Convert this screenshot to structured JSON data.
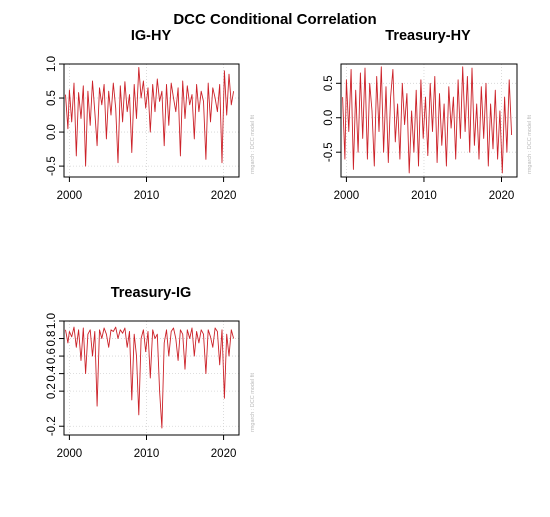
{
  "figure_title": "DCC Conditional Correlation",
  "chart_data": [
    {
      "type": "line",
      "title": "IG-HY",
      "side_label": "rmgarch : DCC model fit",
      "color": "#cc2229",
      "xlim": [
        1999.3,
        2022.0
      ],
      "ylim": [
        -0.66,
        1.0
      ],
      "xticks": [
        "2000",
        "2010",
        "2020"
      ],
      "yticks": [
        "-0.5",
        "0.0",
        "0.5",
        "1.0"
      ],
      "grid": true,
      "x": [
        1999.5,
        1999.8,
        2000.0,
        2000.3,
        2000.6,
        2000.9,
        2001.2,
        2001.5,
        2001.8,
        2002.1,
        2002.4,
        2002.7,
        2003.0,
        2003.3,
        2003.6,
        2003.9,
        2004.2,
        2004.5,
        2004.8,
        2005.1,
        2005.4,
        2005.7,
        2006.0,
        2006.3,
        2006.6,
        2006.9,
        2007.2,
        2007.5,
        2007.8,
        2008.1,
        2008.4,
        2008.7,
        2009.0,
        2009.3,
        2009.6,
        2009.9,
        2010.2,
        2010.5,
        2010.8,
        2011.1,
        2011.4,
        2011.7,
        2012.0,
        2012.3,
        2012.6,
        2012.9,
        2013.2,
        2013.5,
        2013.8,
        2014.1,
        2014.4,
        2014.7,
        2015.0,
        2015.3,
        2015.6,
        2015.9,
        2016.2,
        2016.5,
        2016.8,
        2017.1,
        2017.4,
        2017.7,
        2018.0,
        2018.3,
        2018.6,
        2018.9,
        2019.2,
        2019.5,
        2019.8,
        2020.1,
        2020.4,
        2020.7,
        2021.0,
        2021.3
      ],
      "y": [
        0.55,
        0.05,
        0.62,
        0.15,
        0.72,
        -0.35,
        0.58,
        0.2,
        0.68,
        -0.5,
        0.6,
        0.1,
        0.75,
        0.3,
        -0.2,
        0.65,
        0.4,
        0.7,
        -0.1,
        0.6,
        0.25,
        0.72,
        0.35,
        -0.45,
        0.68,
        0.15,
        0.74,
        0.3,
        0.55,
        -0.3,
        0.7,
        0.2,
        0.95,
        0.5,
        0.75,
        0.35,
        0.65,
        0.0,
        0.7,
        0.3,
        0.78,
        0.45,
        0.6,
        -0.2,
        0.7,
        0.1,
        0.72,
        0.5,
        0.3,
        0.65,
        -0.35,
        0.75,
        0.2,
        0.68,
        0.4,
        0.55,
        -0.1,
        0.7,
        0.3,
        0.6,
        0.45,
        -0.4,
        0.72,
        0.15,
        0.65,
        0.5,
        0.3,
        0.7,
        -0.45,
        0.9,
        0.25,
        0.85,
        0.4,
        0.6
      ]
    },
    {
      "type": "line",
      "title": "Treasury-HY",
      "side_label": "rmgarch : DCC model fit",
      "color": "#cc2229",
      "xlim": [
        1999.3,
        2022.0
      ],
      "ylim": [
        -0.86,
        0.78
      ],
      "xticks": [
        "2000",
        "2010",
        "2020"
      ],
      "yticks": [
        "-0.5",
        "0.0",
        "0.5"
      ],
      "grid": true,
      "x": [
        1999.5,
        1999.8,
        2000.0,
        2000.3,
        2000.6,
        2000.9,
        2001.2,
        2001.5,
        2001.8,
        2002.1,
        2002.4,
        2002.7,
        2003.0,
        2003.3,
        2003.6,
        2003.9,
        2004.2,
        2004.5,
        2004.8,
        2005.1,
        2005.4,
        2005.7,
        2006.0,
        2006.3,
        2006.6,
        2006.9,
        2007.2,
        2007.5,
        2007.8,
        2008.1,
        2008.4,
        2008.7,
        2009.0,
        2009.3,
        2009.6,
        2009.9,
        2010.2,
        2010.5,
        2010.8,
        2011.1,
        2011.4,
        2011.7,
        2012.0,
        2012.3,
        2012.6,
        2012.9,
        2013.2,
        2013.5,
        2013.8,
        2014.1,
        2014.4,
        2014.7,
        2015.0,
        2015.3,
        2015.6,
        2015.9,
        2016.2,
        2016.5,
        2016.8,
        2017.1,
        2017.4,
        2017.7,
        2018.0,
        2018.3,
        2018.6,
        2018.9,
        2019.2,
        2019.5,
        2019.8,
        2020.1,
        2020.4,
        2020.7,
        2021.0,
        2021.3
      ],
      "y": [
        0.3,
        -0.6,
        0.55,
        -0.2,
        0.7,
        -0.75,
        0.4,
        -0.5,
        0.65,
        -0.3,
        0.72,
        -0.6,
        0.5,
        0.1,
        -0.7,
        0.6,
        -0.2,
        0.74,
        -0.5,
        0.45,
        -0.65,
        0.3,
        0.7,
        -0.35,
        0.2,
        -0.6,
        0.5,
        -0.1,
        0.35,
        -0.8,
        0.1,
        -0.5,
        0.4,
        -0.7,
        0.55,
        -0.3,
        0.3,
        -0.55,
        0.5,
        -0.2,
        0.6,
        -0.65,
        0.35,
        -0.4,
        0.2,
        -0.7,
        0.45,
        -0.15,
        0.3,
        -0.6,
        0.55,
        -0.3,
        0.74,
        -0.2,
        0.6,
        -0.5,
        0.72,
        -0.4,
        0.2,
        -0.6,
        0.45,
        -0.3,
        0.5,
        -0.7,
        0.2,
        -0.45,
        0.4,
        -0.6,
        0.1,
        -0.8,
        0.3,
        -0.5,
        0.55,
        -0.25
      ]
    },
    {
      "type": "line",
      "title": "Treasury-IG",
      "side_label": "rmgarch : DCC model fit",
      "color": "#cc2229",
      "xlim": [
        1999.3,
        2022.0
      ],
      "ylim": [
        -0.3,
        1.0
      ],
      "xticks": [
        "2000",
        "2010",
        "2020"
      ],
      "yticks": [
        "-0.2",
        "0.2",
        "0.4",
        "0.6",
        "0.8",
        "1.0"
      ],
      "grid": true,
      "x": [
        1999.5,
        1999.8,
        2000.0,
        2000.3,
        2000.6,
        2000.9,
        2001.2,
        2001.5,
        2001.8,
        2002.1,
        2002.4,
        2002.7,
        2003.0,
        2003.3,
        2003.6,
        2003.9,
        2004.2,
        2004.5,
        2004.8,
        2005.1,
        2005.4,
        2005.7,
        2006.0,
        2006.3,
        2006.6,
        2006.9,
        2007.2,
        2007.5,
        2007.8,
        2008.1,
        2008.4,
        2008.7,
        2009.0,
        2009.3,
        2009.6,
        2009.9,
        2010.2,
        2010.5,
        2010.8,
        2011.1,
        2011.4,
        2011.7,
        2012.0,
        2012.3,
        2012.6,
        2012.9,
        2013.2,
        2013.5,
        2013.8,
        2014.1,
        2014.4,
        2014.7,
        2015.0,
        2015.3,
        2015.6,
        2015.9,
        2016.2,
        2016.5,
        2016.8,
        2017.1,
        2017.4,
        2017.7,
        2018.0,
        2018.3,
        2018.6,
        2018.9,
        2019.2,
        2019.5,
        2019.8,
        2020.1,
        2020.4,
        2020.7,
        2021.0,
        2021.3
      ],
      "y": [
        0.9,
        0.75,
        0.88,
        0.82,
        0.93,
        0.7,
        0.9,
        0.55,
        0.92,
        0.4,
        0.85,
        0.9,
        0.6,
        0.88,
        0.03,
        0.9,
        0.8,
        0.92,
        0.85,
        0.7,
        0.9,
        0.88,
        0.93,
        0.8,
        0.9,
        0.86,
        0.92,
        0.7,
        0.88,
        0.1,
        0.85,
        0.6,
        -0.07,
        0.8,
        0.9,
        0.65,
        0.88,
        0.35,
        0.9,
        0.8,
        0.85,
        0.2,
        -0.22,
        0.75,
        0.9,
        0.6,
        0.88,
        0.92,
        0.8,
        0.55,
        0.9,
        0.85,
        0.45,
        0.9,
        0.8,
        0.92,
        0.6,
        0.88,
        0.75,
        0.9,
        0.85,
        0.4,
        0.9,
        0.82,
        0.7,
        0.92,
        0.88,
        0.5,
        0.9,
        0.12,
        0.85,
        0.6,
        0.9,
        0.8
      ]
    }
  ]
}
